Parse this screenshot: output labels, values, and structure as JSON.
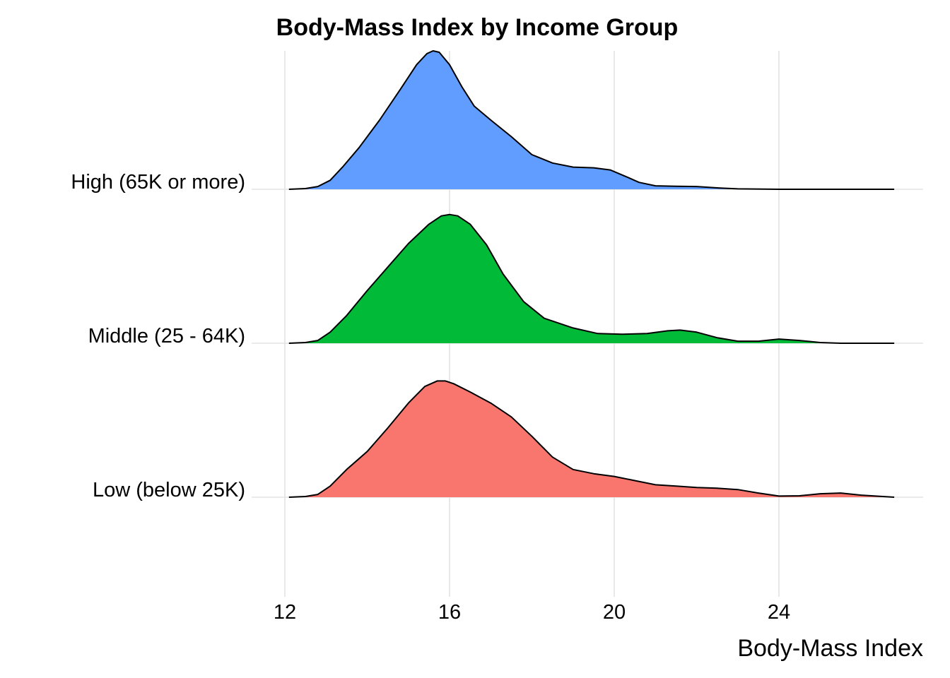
{
  "chart_data": {
    "type": "ridgeline",
    "title": "Body-Mass Index by Income Group",
    "xlabel": "Body-Mass Index",
    "ylabel": "",
    "xlim": [
      12,
      27
    ],
    "x_ticks": [
      "12",
      "16",
      "20",
      "24"
    ],
    "grid": true,
    "legend": "none",
    "series": [
      {
        "name": "High (65K or more)",
        "color": "#619CFF",
        "x": [
          12.1,
          12.5,
          12.8,
          13.1,
          13.4,
          13.8,
          14.3,
          14.8,
          15.2,
          15.45,
          15.6,
          15.75,
          16.0,
          16.3,
          16.6,
          17.0,
          17.5,
          18.0,
          18.5,
          19.0,
          19.5,
          19.9,
          20.3,
          20.6,
          21.0,
          21.5,
          22.0,
          22.5,
          23.0,
          24.0,
          25.0,
          26.8
        ],
        "density": [
          0.0,
          0.005,
          0.02,
          0.065,
          0.16,
          0.3,
          0.5,
          0.72,
          0.9,
          0.98,
          1.0,
          0.99,
          0.9,
          0.74,
          0.6,
          0.5,
          0.38,
          0.25,
          0.19,
          0.16,
          0.155,
          0.14,
          0.09,
          0.05,
          0.025,
          0.022,
          0.02,
          0.01,
          0.003,
          0.0,
          0.0,
          0.0
        ]
      },
      {
        "name": "Middle (25 - 64K)",
        "color": "#00BA38",
        "x": [
          12.1,
          12.5,
          12.8,
          13.1,
          13.5,
          14.0,
          14.5,
          15.0,
          15.5,
          15.8,
          16.0,
          16.2,
          16.5,
          16.9,
          17.3,
          17.8,
          18.3,
          19.0,
          19.6,
          20.2,
          20.8,
          21.3,
          21.6,
          22.0,
          22.5,
          23.0,
          23.5,
          24.0,
          24.5,
          25.0,
          25.5,
          26.8
        ],
        "density": [
          0.0,
          0.005,
          0.02,
          0.08,
          0.2,
          0.38,
          0.55,
          0.72,
          0.86,
          0.92,
          0.93,
          0.92,
          0.86,
          0.71,
          0.5,
          0.3,
          0.18,
          0.11,
          0.07,
          0.065,
          0.07,
          0.09,
          0.095,
          0.08,
          0.04,
          0.015,
          0.015,
          0.03,
          0.02,
          0.005,
          0.0,
          0.0
        ]
      },
      {
        "name": "Low (below 25K)",
        "color": "#F8766D",
        "x": [
          12.1,
          12.5,
          12.8,
          13.1,
          13.5,
          14.0,
          14.5,
          15.0,
          15.4,
          15.7,
          15.9,
          16.1,
          16.5,
          17.0,
          17.5,
          18.0,
          18.5,
          19.0,
          19.5,
          20.0,
          20.5,
          21.0,
          21.5,
          22.0,
          22.5,
          23.0,
          23.5,
          24.0,
          24.5,
          25.0,
          25.5,
          26.0,
          26.8
        ],
        "density": [
          0.0,
          0.005,
          0.02,
          0.08,
          0.2,
          0.33,
          0.5,
          0.68,
          0.8,
          0.84,
          0.84,
          0.82,
          0.76,
          0.68,
          0.58,
          0.44,
          0.29,
          0.2,
          0.17,
          0.15,
          0.12,
          0.09,
          0.08,
          0.07,
          0.065,
          0.055,
          0.03,
          0.008,
          0.01,
          0.025,
          0.03,
          0.015,
          0.0
        ]
      }
    ]
  }
}
